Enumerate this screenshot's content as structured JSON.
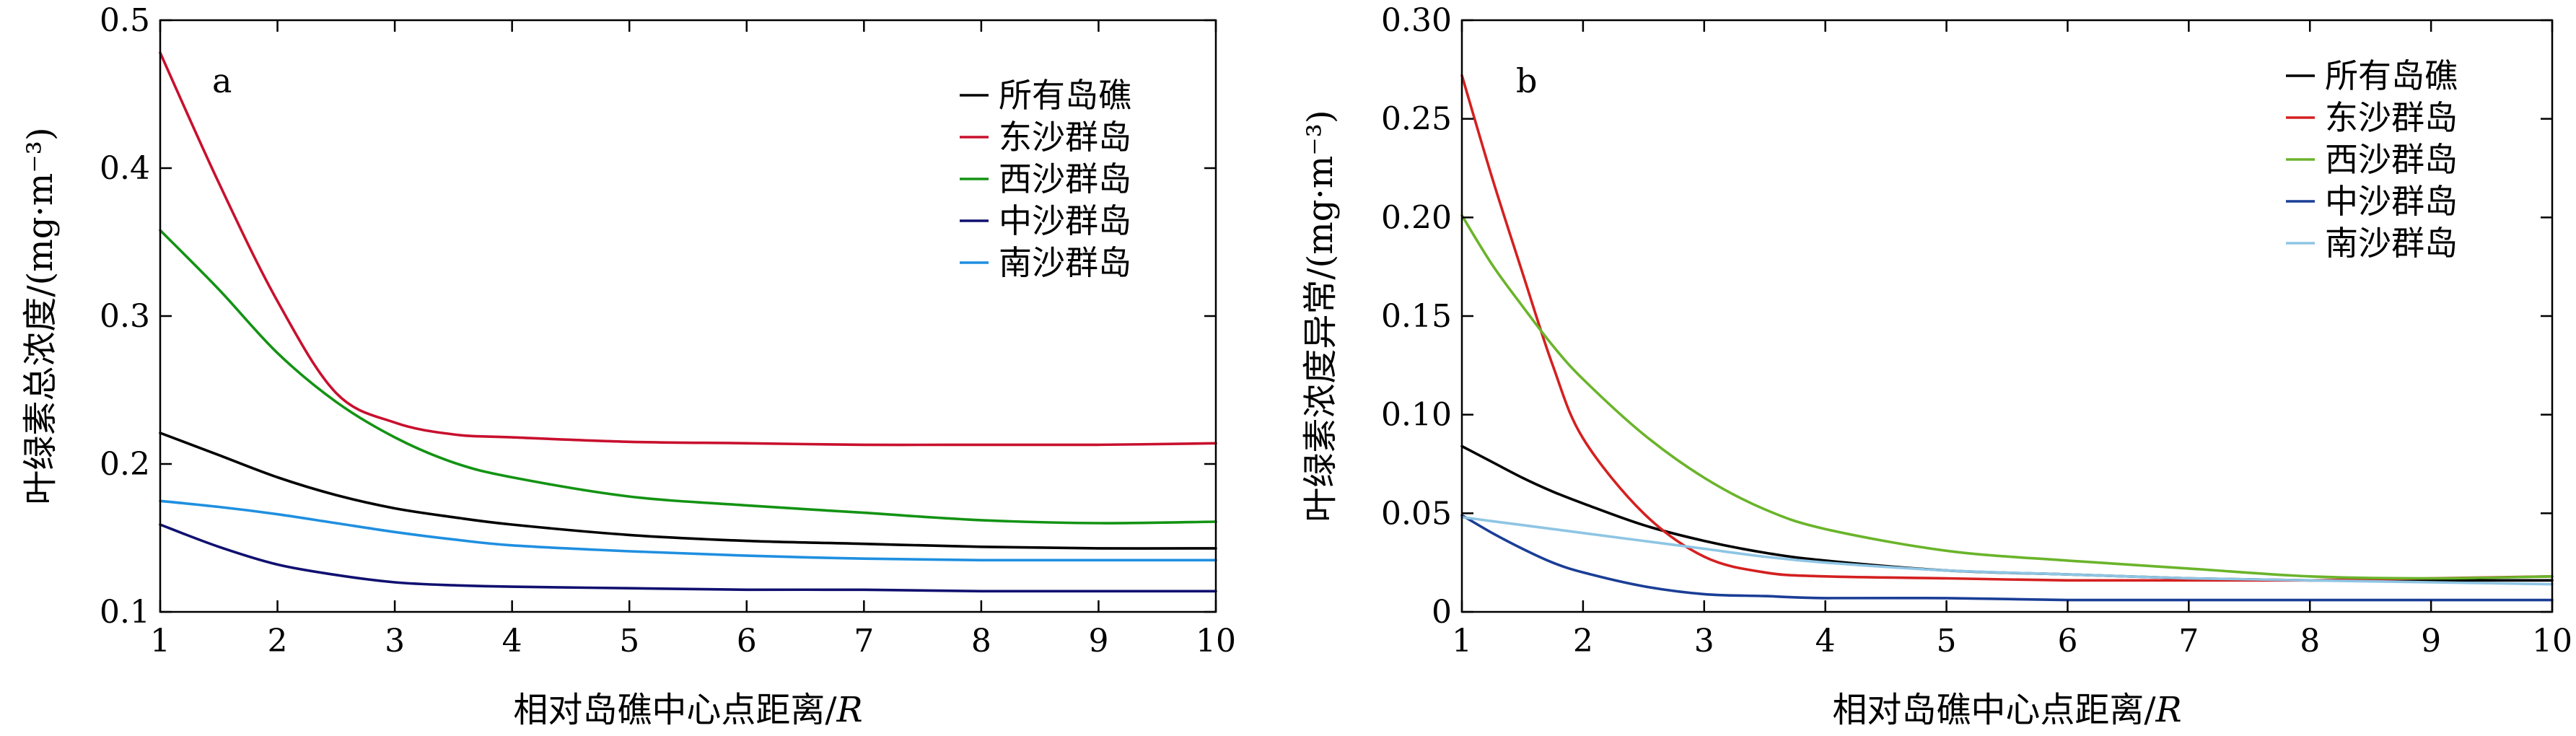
{
  "chart_data": [
    {
      "type": "line",
      "panel_label": "a",
      "xlabel": "相对岛礁中心点距离/",
      "xlabel_var": "R",
      "ylabel": "叶绿素总浓度/(mg·m⁻³)",
      "xlim": [
        1,
        10
      ],
      "ylim": [
        0.1,
        0.5
      ],
      "x_ticks": [
        "1",
        "2",
        "3",
        "4",
        "5",
        "6",
        "7",
        "8",
        "9",
        "10"
      ],
      "y_ticks": [
        "0.1",
        "0.2",
        "0.3",
        "0.4",
        "0.5"
      ],
      "grid": false,
      "legend_position": "top-right",
      "x": [
        1,
        1.5,
        2,
        2.5,
        3,
        3.5,
        4,
        5,
        6,
        7,
        8,
        9,
        10
      ],
      "series": [
        {
          "name": "所有岛礁",
          "color": "#000000",
          "values": [
            0.221,
            0.206,
            0.191,
            0.179,
            0.17,
            0.164,
            0.159,
            0.152,
            0.148,
            0.146,
            0.144,
            0.143,
            0.143
          ]
        },
        {
          "name": "东沙群岛",
          "color": "#c8102e",
          "values": [
            0.478,
            0.39,
            0.31,
            0.248,
            0.228,
            0.22,
            0.218,
            0.215,
            0.214,
            0.213,
            0.213,
            0.213,
            0.214
          ]
        },
        {
          "name": "西沙群岛",
          "color": "#139313",
          "values": [
            0.358,
            0.318,
            0.275,
            0.242,
            0.218,
            0.201,
            0.191,
            0.178,
            0.172,
            0.167,
            0.162,
            0.16,
            0.161
          ]
        },
        {
          "name": "中沙群岛",
          "color": "#101070",
          "values": [
            0.159,
            0.144,
            0.132,
            0.125,
            0.12,
            0.118,
            0.117,
            0.116,
            0.115,
            0.115,
            0.114,
            0.114,
            0.114
          ]
        },
        {
          "name": "南沙群岛",
          "color": "#1f8fe0",
          "values": [
            0.175,
            0.171,
            0.166,
            0.16,
            0.154,
            0.149,
            0.145,
            0.141,
            0.138,
            0.136,
            0.135,
            0.135,
            0.135
          ]
        }
      ]
    },
    {
      "type": "line",
      "panel_label": "b",
      "xlabel": "相对岛礁中心点距离/",
      "xlabel_var": "R",
      "ylabel": "叶绿素浓度异常/(mg·m⁻³)",
      "xlim": [
        1,
        10
      ],
      "ylim": [
        0,
        0.3
      ],
      "x_ticks": [
        "1",
        "2",
        "3",
        "4",
        "5",
        "6",
        "7",
        "8",
        "9",
        "10"
      ],
      "y_ticks": [
        "0",
        "0.05",
        "0.10",
        "0.15",
        "0.20",
        "0.25",
        "0.30"
      ],
      "grid": false,
      "legend_position": "top-right",
      "x": [
        1,
        1.25,
        1.5,
        1.75,
        2,
        2.5,
        3,
        3.5,
        4,
        5,
        6,
        7,
        8,
        9,
        10
      ],
      "series": [
        {
          "name": "所有岛礁",
          "color": "#000000",
          "values": [
            0.084,
            0.076,
            0.068,
            0.061,
            0.055,
            0.044,
            0.036,
            0.03,
            0.026,
            0.021,
            0.019,
            0.017,
            0.016,
            0.016,
            0.016
          ]
        },
        {
          "name": "东沙群岛",
          "color": "#d42020",
          "values": [
            0.272,
            0.22,
            0.172,
            0.125,
            0.088,
            0.05,
            0.028,
            0.02,
            0.018,
            0.017,
            0.016,
            0.016,
            0.016,
            0.017,
            0.018
          ]
        },
        {
          "name": "西沙群岛",
          "color": "#6ab42a",
          "values": [
            0.201,
            0.176,
            0.155,
            0.135,
            0.118,
            0.09,
            0.068,
            0.052,
            0.042,
            0.031,
            0.026,
            0.022,
            0.018,
            0.017,
            0.018
          ]
        },
        {
          "name": "中沙群岛",
          "color": "#1a3e96",
          "values": [
            0.049,
            0.04,
            0.032,
            0.025,
            0.02,
            0.013,
            0.009,
            0.008,
            0.007,
            0.007,
            0.006,
            0.006,
            0.006,
            0.006,
            0.006
          ]
        },
        {
          "name": "南沙群岛",
          "color": "#8ec5e4",
          "values": [
            0.048,
            0.046,
            0.044,
            0.042,
            0.04,
            0.036,
            0.032,
            0.028,
            0.025,
            0.021,
            0.019,
            0.017,
            0.016,
            0.015,
            0.014
          ]
        }
      ]
    }
  ]
}
